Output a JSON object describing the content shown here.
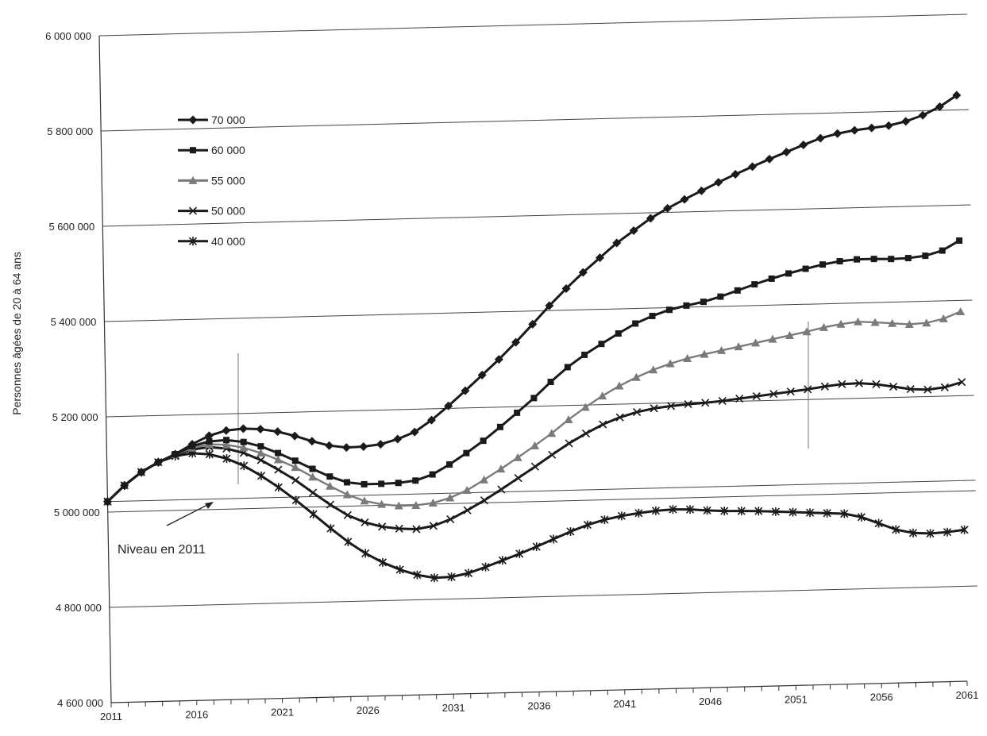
{
  "chart_data": {
    "type": "line",
    "title": "",
    "xlabel": "",
    "ylabel": "Personnes âgées de 20 à 64 ans",
    "ylim": [
      4600000,
      6000000
    ],
    "xlim": [
      2011,
      2061
    ],
    "y_ticks": [
      4600000,
      4800000,
      5000000,
      5200000,
      5400000,
      5600000,
      5800000,
      6000000
    ],
    "y_tick_labels": [
      "4 600 000",
      "4 800 000",
      "5 000 000",
      "5 200 000",
      "5 400 000",
      "5 600 000",
      "5 800 000",
      "6 000 000"
    ],
    "x_tick_labels": [
      "2011",
      "2016",
      "2021",
      "2026",
      "2031",
      "2036",
      "2041",
      "2046",
      "2051",
      "2056",
      "2061"
    ],
    "grid": true,
    "legend_position": "top-left",
    "reference_level": 5022000,
    "annotation": "Niveau en 2011",
    "series": [
      {
        "name": "70 000",
        "marker": "diamond",
        "color": "#1a1a1a",
        "values": [
          5022000,
          5055000,
          5082000,
          5102000,
          5118000,
          5138000,
          5155000,
          5165000,
          5168000,
          5166000,
          5160000,
          5150000,
          5138000,
          5128000,
          5123000,
          5124000,
          5128000,
          5138000,
          5152000,
          5176000,
          5205000,
          5236000,
          5268000,
          5300000,
          5335000,
          5372000,
          5410000,
          5445000,
          5478000,
          5508000,
          5538000,
          5563000,
          5588000,
          5608000,
          5626000,
          5643000,
          5660000,
          5676000,
          5691000,
          5706000,
          5720000,
          5734000,
          5747000,
          5756000,
          5762000,
          5766000,
          5770000,
          5778000,
          5790000,
          5807000,
          5830000
        ]
      },
      {
        "name": "60 000",
        "marker": "square",
        "color": "#1a1a1a",
        "values": [
          5022000,
          5055000,
          5082000,
          5102000,
          5118000,
          5134000,
          5143000,
          5145000,
          5140000,
          5130000,
          5115000,
          5098000,
          5080000,
          5063000,
          5050000,
          5045000,
          5045000,
          5046000,
          5050000,
          5062000,
          5082000,
          5105000,
          5130000,
          5158000,
          5187000,
          5217000,
          5250000,
          5280000,
          5305000,
          5327000,
          5348000,
          5368000,
          5383000,
          5395000,
          5403000,
          5410000,
          5420000,
          5432000,
          5444000,
          5455000,
          5465000,
          5474000,
          5482000,
          5488000,
          5491000,
          5491000,
          5490000,
          5491000,
          5495000,
          5505000,
          5525000
        ]
      },
      {
        "name": "55 000",
        "marker": "triangle",
        "color": "#7a7a7a",
        "values": [
          5022000,
          5055000,
          5082000,
          5102000,
          5117000,
          5130000,
          5137000,
          5135000,
          5128000,
          5116000,
          5101000,
          5084000,
          5063000,
          5043000,
          5024000,
          5010000,
          5002000,
          4998000,
          4998000,
          5002000,
          5012000,
          5027000,
          5048000,
          5070000,
          5093000,
          5117000,
          5142000,
          5170000,
          5195000,
          5218000,
          5238000,
          5255000,
          5270000,
          5282000,
          5292000,
          5300000,
          5307000,
          5314000,
          5321000,
          5328000,
          5335000,
          5342000,
          5350000,
          5356000,
          5360000,
          5358000,
          5355000,
          5352000,
          5354000,
          5362000,
          5376000
        ]
      },
      {
        "name": "50 000",
        "marker": "x",
        "color": "#1a1a1a",
        "values": [
          5022000,
          5055000,
          5082000,
          5102000,
          5116000,
          5127000,
          5131000,
          5127000,
          5117000,
          5101000,
          5080000,
          5057000,
          5030000,
          5004000,
          4981000,
          4965000,
          4955000,
          4950000,
          4948000,
          4954000,
          4967000,
          4985000,
          5005000,
          5027000,
          5050000,
          5073000,
          5097000,
          5120000,
          5140000,
          5158000,
          5172000,
          5182000,
          5189000,
          5193000,
          5196000,
          5198000,
          5201000,
          5205000,
          5209000,
          5213000,
          5217000,
          5221000,
          5226000,
          5230000,
          5231000,
          5228000,
          5222000,
          5216000,
          5214000,
          5218000,
          5228000
        ]
      },
      {
        "name": "40 000",
        "marker": "asterisk",
        "color": "#1a1a1a",
        "values": [
          5022000,
          5055000,
          5082000,
          5102000,
          5114000,
          5119000,
          5116000,
          5106000,
          5090000,
          5068000,
          5043000,
          5015000,
          4985000,
          4954000,
          4925000,
          4900000,
          4880000,
          4864000,
          4852000,
          4845000,
          4846000,
          4853000,
          4865000,
          4878000,
          4891000,
          4905000,
          4920000,
          4935000,
          4948000,
          4958000,
          4965000,
          4970000,
          4974000,
          4976000,
          4975000,
          4972000,
          4970000,
          4969000,
          4968000,
          4966000,
          4964000,
          4962000,
          4960000,
          4958000,
          4950000,
          4936000,
          4922000,
          4914000,
          4912000,
          4914000,
          4918000
        ]
      }
    ]
  }
}
